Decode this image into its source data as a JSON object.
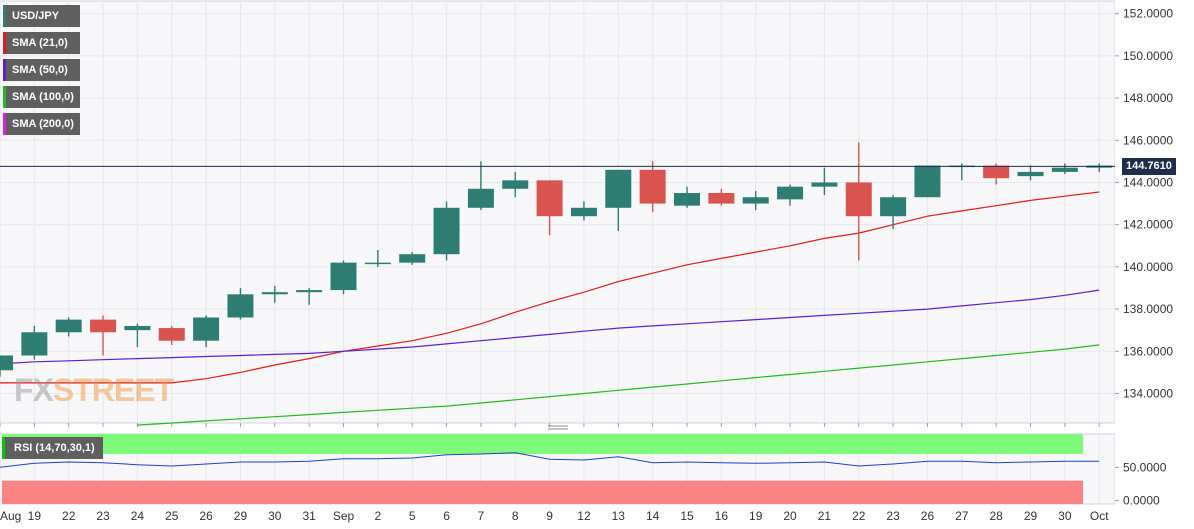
{
  "legend": [
    {
      "label": "USD/JPY",
      "color": "#2e7d73"
    },
    {
      "label": "SMA (21,0)",
      "color": "#e31a1c"
    },
    {
      "label": "SMA (50,0)",
      "color": "#5b1fd1"
    },
    {
      "label": "SMA (100,0)",
      "color": "#22bb22"
    },
    {
      "label": "SMA (200,0)",
      "color": "#e01fe0"
    }
  ],
  "watermark": {
    "fx": "FX",
    "street": "STREET"
  },
  "price_tag": "144.7610",
  "rsi_label": "RSI (14,70,30,1)",
  "chart_data": [
    {
      "type": "candlestick",
      "title": "USD/JPY",
      "x_labels": [
        "Aug",
        "19",
        "22",
        "23",
        "24",
        "25",
        "26",
        "29",
        "30",
        "31",
        "Sep",
        "2",
        "5",
        "6",
        "7",
        "8",
        "9",
        "12",
        "13",
        "14",
        "15",
        "16",
        "19",
        "20",
        "21",
        "22",
        "23",
        "26",
        "27",
        "28",
        "29",
        "30",
        "Oct"
      ],
      "ylim": [
        132.6,
        152.6
      ],
      "y_ticks": [
        134,
        136,
        138,
        140,
        142,
        144,
        146,
        148,
        150,
        152
      ],
      "y_tick_labels": [
        "134.0000",
        "136.0000",
        "138.0000",
        "140.0000",
        "142.0000",
        "144.0000",
        "146.0000",
        "148.0000",
        "150.0000",
        "152.0000"
      ],
      "current_price": 144.761,
      "ohlc": [
        [
          135.1,
          135.8,
          134.8,
          135.8
        ],
        [
          135.8,
          137.2,
          135.6,
          136.9
        ],
        [
          136.9,
          137.6,
          136.7,
          137.5
        ],
        [
          137.5,
          137.7,
          135.8,
          136.9
        ],
        [
          137.0,
          137.3,
          136.2,
          137.2
        ],
        [
          137.1,
          137.2,
          136.3,
          136.5
        ],
        [
          136.5,
          137.7,
          136.2,
          137.6
        ],
        [
          137.6,
          139.0,
          137.5,
          138.7
        ],
        [
          138.7,
          139.1,
          138.3,
          138.8
        ],
        [
          138.8,
          139.0,
          138.2,
          138.9
        ],
        [
          138.9,
          140.3,
          138.7,
          140.2
        ],
        [
          140.2,
          140.8,
          140.0,
          140.2
        ],
        [
          140.2,
          140.7,
          140.1,
          140.6
        ],
        [
          140.6,
          143.1,
          140.3,
          142.8
        ],
        [
          142.8,
          145.0,
          142.7,
          143.7
        ],
        [
          143.7,
          144.5,
          143.3,
          144.1
        ],
        [
          144.1,
          144.1,
          141.5,
          142.4
        ],
        [
          142.4,
          143.1,
          142.2,
          142.8
        ],
        [
          142.8,
          144.6,
          141.7,
          144.6
        ],
        [
          144.6,
          145.0,
          142.6,
          143.0
        ],
        [
          142.9,
          143.8,
          142.8,
          143.5
        ],
        [
          143.5,
          143.7,
          142.9,
          143.0
        ],
        [
          143.0,
          143.6,
          142.7,
          143.3
        ],
        [
          143.2,
          143.9,
          142.9,
          143.8
        ],
        [
          143.8,
          144.7,
          143.4,
          144.0
        ],
        [
          144.0,
          145.9,
          140.3,
          142.4
        ],
        [
          142.4,
          143.4,
          141.8,
          143.3
        ],
        [
          143.3,
          144.8,
          143.3,
          144.8
        ],
        [
          144.8,
          144.9,
          144.1,
          144.8
        ],
        [
          144.8,
          144.9,
          143.9,
          144.2
        ],
        [
          144.3,
          144.8,
          144.1,
          144.5
        ],
        [
          144.5,
          144.9,
          144.4,
          144.7
        ],
        [
          144.7,
          144.9,
          144.5,
          144.8
        ]
      ],
      "series": [
        {
          "name": "SMA (21,0)",
          "color": "#e31a1c",
          "values": [
            134.5,
            134.5,
            134.5,
            134.5,
            134.5,
            134.5,
            134.7,
            135.0,
            135.35,
            135.65,
            136.0,
            136.25,
            136.5,
            136.85,
            137.3,
            137.85,
            138.35,
            138.8,
            139.3,
            139.7,
            140.1,
            140.4,
            140.7,
            141.0,
            141.35,
            141.6,
            142.0,
            142.4,
            142.65,
            142.9,
            143.15,
            143.35,
            143.55
          ]
        },
        {
          "name": "SMA (50,0)",
          "color": "#5b1fd1",
          "values": [
            135.4,
            135.5,
            135.55,
            135.6,
            135.65,
            135.7,
            135.75,
            135.8,
            135.85,
            135.9,
            136.0,
            136.1,
            136.2,
            136.35,
            136.5,
            136.65,
            136.8,
            136.95,
            137.1,
            137.2,
            137.3,
            137.4,
            137.5,
            137.6,
            137.7,
            137.8,
            137.9,
            138.0,
            138.15,
            138.3,
            138.45,
            138.65,
            138.9
          ]
        },
        {
          "name": "SMA (100,0)",
          "color": "#22bb22",
          "values": [
            null,
            null,
            null,
            null,
            132.5,
            132.6,
            132.7,
            132.8,
            132.9,
            133.0,
            133.1,
            133.2,
            133.3,
            133.4,
            133.55,
            133.7,
            133.85,
            134.0,
            134.15,
            134.3,
            134.45,
            134.6,
            134.75,
            134.9,
            135.05,
            135.2,
            135.35,
            135.5,
            135.65,
            135.8,
            135.95,
            136.1,
            136.3
          ]
        }
      ]
    },
    {
      "type": "line",
      "title": "RSI (14,70,30,1)",
      "ylim": [
        -5,
        100
      ],
      "overbought": 70,
      "oversold": 30,
      "y_ticks": [
        0,
        50
      ],
      "y_tick_labels": [
        "0.0000",
        "50.0000"
      ],
      "series": [
        {
          "name": "RSI (14,70,30,1)",
          "color": "#1f3fc4",
          "values": [
            50,
            56,
            58,
            57,
            54,
            52,
            55,
            58,
            58,
            59,
            63,
            63,
            64,
            69,
            70,
            72,
            62,
            61,
            66,
            57,
            58,
            57,
            56,
            57,
            58,
            52,
            55,
            59,
            59,
            57,
            58,
            59,
            59
          ]
        }
      ]
    }
  ]
}
